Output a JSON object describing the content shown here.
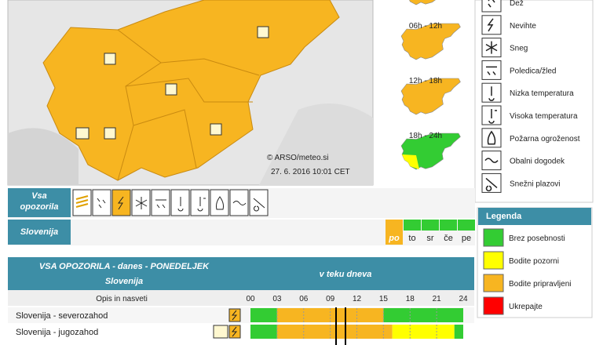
{
  "map": {
    "credit": "© ARSO/meteo.si",
    "timestamp": "27. 6. 2016  10:01 CET"
  },
  "periods": [
    "06h - 12h",
    "12h - 18h",
    "18h - 24h"
  ],
  "warning_types": [
    "Dež",
    "Nevihte",
    "Sneg",
    "Poledica/žled",
    "Nizka temperatura",
    "Visoka temperatura",
    "Požarna ogroženost",
    "Obalni dogodek",
    "Snežni plazovi"
  ],
  "legend": {
    "title": "Legenda",
    "items": [
      {
        "label": "Brez posebnosti",
        "color": "#33cc33"
      },
      {
        "label": "Bodite pozorni",
        "color": "#ffff00"
      },
      {
        "label": "Bodite pripravljeni",
        "color": "#f7b521"
      },
      {
        "label": "Ukrepajte",
        "color": "#ff0000"
      }
    ]
  },
  "filter": {
    "label": "Vsa opozorila",
    "region": "Slovenija",
    "days": [
      "po",
      "to",
      "sr",
      "če",
      "pe"
    ]
  },
  "table": {
    "title": "VSA OPOZORILA - danes - PONEDELJEK",
    "region": "Slovenija",
    "timeline_label": "v teku dneva",
    "column_label": "Opis in nasveti",
    "hours": [
      "00",
      "03",
      "06",
      "09",
      "12",
      "15",
      "18",
      "21",
      "24"
    ],
    "rows": [
      {
        "name": "Slovenija - severozahod",
        "segments": [
          {
            "from": 0,
            "to": 3,
            "color": "#33cc33"
          },
          {
            "from": 3,
            "to": 15,
            "color": "#f7b521"
          },
          {
            "from": 15,
            "to": 24,
            "color": "#33cc33"
          }
        ]
      },
      {
        "name": "Slovenija - jugozahod",
        "segments": [
          {
            "from": 0,
            "to": 3,
            "color": "#33cc33"
          },
          {
            "from": 3,
            "to": 16,
            "color": "#f7b521"
          },
          {
            "from": 16,
            "to": 23,
            "color": "#ffff00"
          },
          {
            "from": 23,
            "to": 24,
            "color": "#33cc33"
          }
        ]
      }
    ]
  }
}
